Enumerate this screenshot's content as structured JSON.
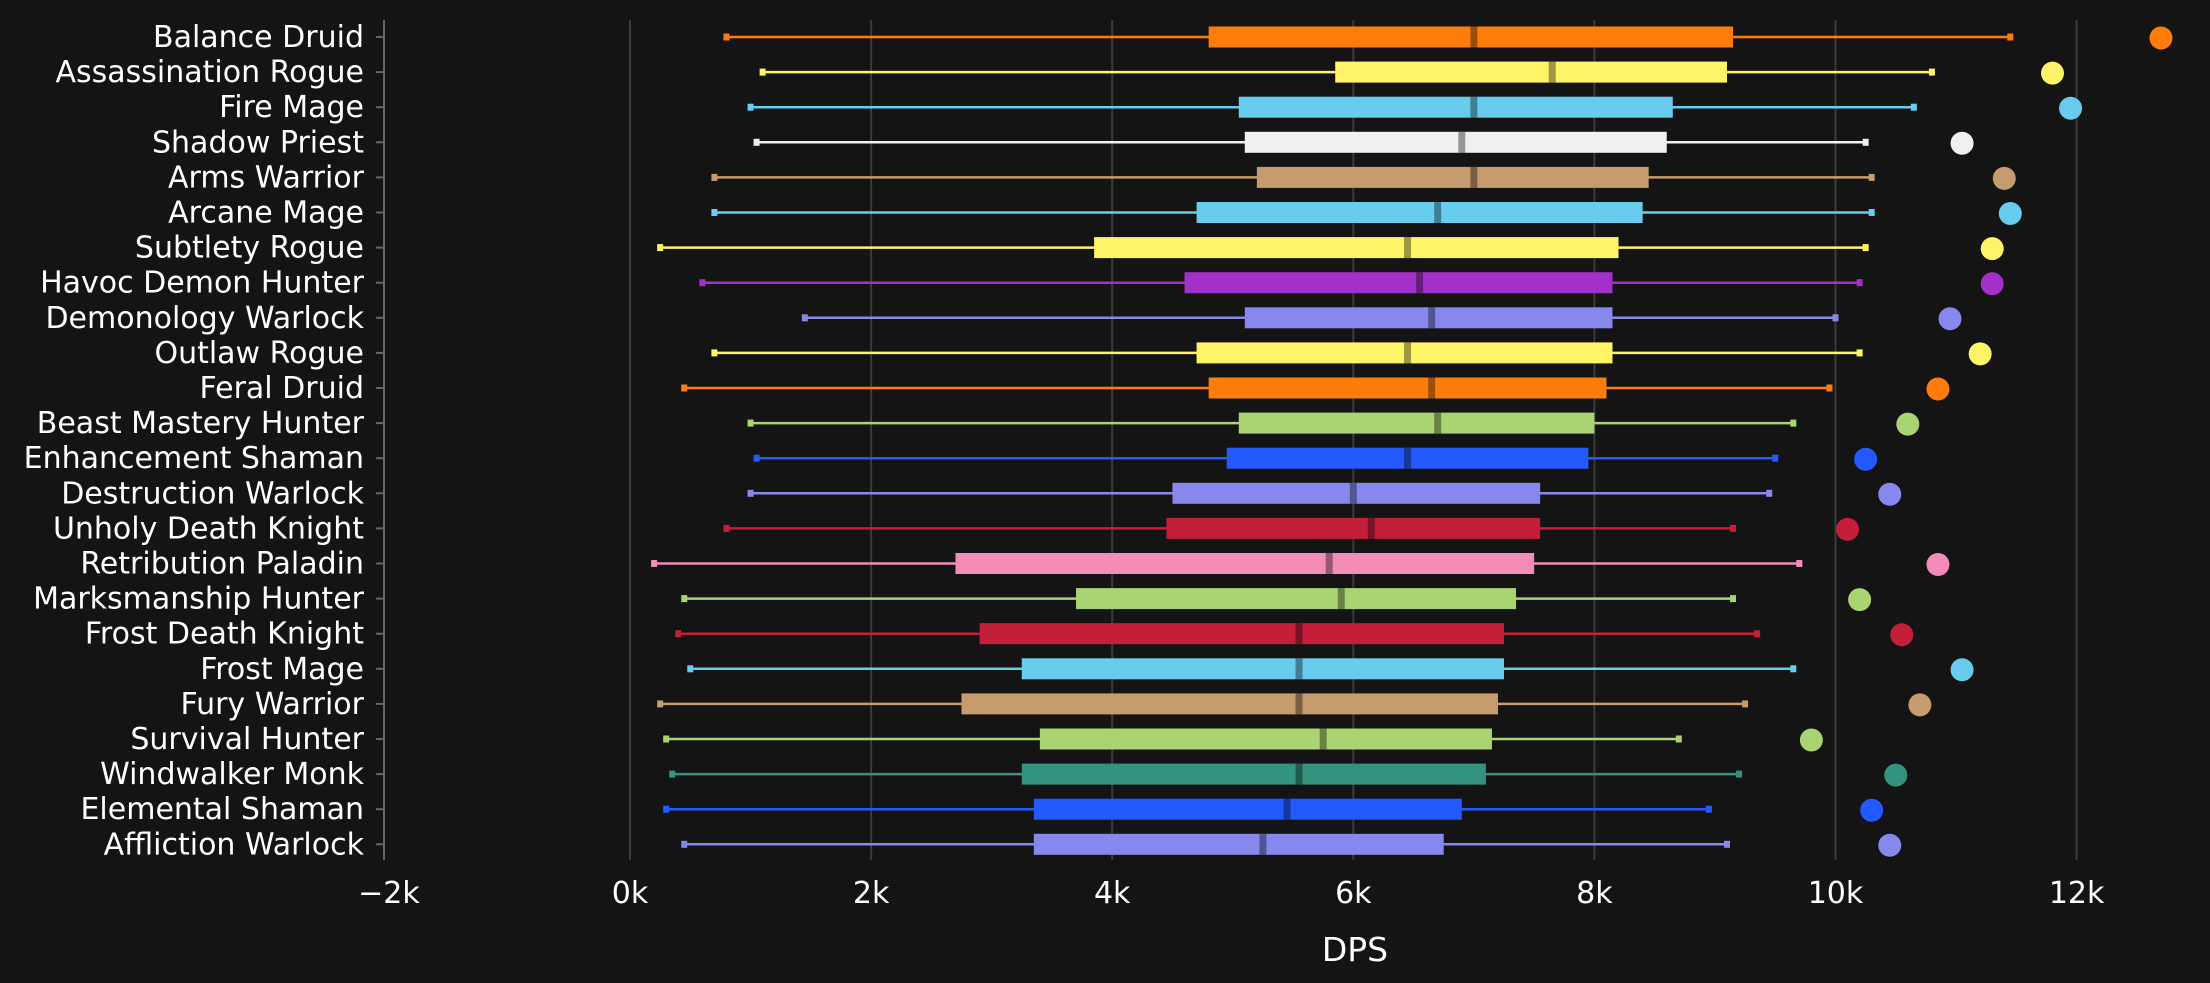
{
  "chart_data": {
    "type": "box",
    "orientation": "horizontal",
    "title": "",
    "xlabel": "DPS",
    "ylabel": "",
    "xlim": [
      -2000,
      12800
    ],
    "x_ticks": [
      -2000,
      0,
      2000,
      4000,
      6000,
      8000,
      10000,
      12000
    ],
    "x_tick_labels": [
      "−2k",
      "0k",
      "2k",
      "4k",
      "6k",
      "8k",
      "10k",
      "12k"
    ],
    "grid": true,
    "legend": "none",
    "fields": [
      "name",
      "color",
      "whisker_low",
      "q1",
      "median",
      "q3",
      "whisker_high",
      "max_point"
    ],
    "series": [
      {
        "name": "Balance Druid",
        "color": "#ff7c0a",
        "whisker_low": 800,
        "q1": 4800,
        "median": 7000,
        "q3": 9150,
        "whisker_high": 11450,
        "max_point": 12700
      },
      {
        "name": "Assassination Rogue",
        "color": "#fff468",
        "whisker_low": 1100,
        "q1": 5850,
        "median": 7650,
        "q3": 9100,
        "whisker_high": 10800,
        "max_point": 11800
      },
      {
        "name": "Fire Mage",
        "color": "#68ccef",
        "whisker_low": 1000,
        "q1": 5050,
        "median": 7000,
        "q3": 8650,
        "whisker_high": 10650,
        "max_point": 11950
      },
      {
        "name": "Shadow Priest",
        "color": "#f0f0f0",
        "whisker_low": 1050,
        "q1": 5100,
        "median": 6900,
        "q3": 8600,
        "whisker_high": 10250,
        "max_point": 11050
      },
      {
        "name": "Arms Warrior",
        "color": "#c69b6d",
        "whisker_low": 700,
        "q1": 5200,
        "median": 7000,
        "q3": 8450,
        "whisker_high": 10300,
        "max_point": 11400
      },
      {
        "name": "Arcane Mage",
        "color": "#68ccef",
        "whisker_low": 700,
        "q1": 4700,
        "median": 6700,
        "q3": 8400,
        "whisker_high": 10300,
        "max_point": 11450
      },
      {
        "name": "Subtlety Rogue",
        "color": "#fff468",
        "whisker_low": 250,
        "q1": 3850,
        "median": 6450,
        "q3": 8200,
        "whisker_high": 10250,
        "max_point": 11300
      },
      {
        "name": "Havoc Demon Hunter",
        "color": "#a330c9",
        "whisker_low": 600,
        "q1": 4600,
        "median": 6550,
        "q3": 8150,
        "whisker_high": 10200,
        "max_point": 11300
      },
      {
        "name": "Demonology Warlock",
        "color": "#8788ee",
        "whisker_low": 1450,
        "q1": 5100,
        "median": 6650,
        "q3": 8150,
        "whisker_high": 10000,
        "max_point": 10950
      },
      {
        "name": "Outlaw Rogue",
        "color": "#fff468",
        "whisker_low": 700,
        "q1": 4700,
        "median": 6450,
        "q3": 8150,
        "whisker_high": 10200,
        "max_point": 11200
      },
      {
        "name": "Feral Druid",
        "color": "#ff7c0a",
        "whisker_low": 450,
        "q1": 4800,
        "median": 6650,
        "q3": 8100,
        "whisker_high": 9950,
        "max_point": 10850
      },
      {
        "name": "Beast Mastery Hunter",
        "color": "#aad372",
        "whisker_low": 1000,
        "q1": 5050,
        "median": 6700,
        "q3": 8000,
        "whisker_high": 9650,
        "max_point": 10600
      },
      {
        "name": "Enhancement Shaman",
        "color": "#2359ff",
        "whisker_low": 1050,
        "q1": 4950,
        "median": 6450,
        "q3": 7950,
        "whisker_high": 9500,
        "max_point": 10250
      },
      {
        "name": "Destruction Warlock",
        "color": "#8788ee",
        "whisker_low": 1000,
        "q1": 4500,
        "median": 6000,
        "q3": 7550,
        "whisker_high": 9450,
        "max_point": 10450
      },
      {
        "name": "Unholy Death Knight",
        "color": "#c41e3a",
        "whisker_low": 800,
        "q1": 4450,
        "median": 6150,
        "q3": 7550,
        "whisker_high": 9150,
        "max_point": 10100
      },
      {
        "name": "Retribution Paladin",
        "color": "#f48cba",
        "whisker_low": 200,
        "q1": 2700,
        "median": 5800,
        "q3": 7500,
        "whisker_high": 9700,
        "max_point": 10850
      },
      {
        "name": "Marksmanship Hunter",
        "color": "#aad372",
        "whisker_low": 450,
        "q1": 3700,
        "median": 5900,
        "q3": 7350,
        "whisker_high": 9150,
        "max_point": 10200
      },
      {
        "name": "Frost Death Knight",
        "color": "#c41e3a",
        "whisker_low": 400,
        "q1": 2900,
        "median": 5550,
        "q3": 7250,
        "whisker_high": 9350,
        "max_point": 10550
      },
      {
        "name": "Frost Mage",
        "color": "#68ccef",
        "whisker_low": 500,
        "q1": 3250,
        "median": 5550,
        "q3": 7250,
        "whisker_high": 9650,
        "max_point": 11050
      },
      {
        "name": "Fury Warrior",
        "color": "#c69b6d",
        "whisker_low": 250,
        "q1": 2750,
        "median": 5550,
        "q3": 7200,
        "whisker_high": 9250,
        "max_point": 10700
      },
      {
        "name": "Survival Hunter",
        "color": "#aad372",
        "whisker_low": 300,
        "q1": 3400,
        "median": 5750,
        "q3": 7150,
        "whisker_high": 8700,
        "max_point": 9800
      },
      {
        "name": "Windwalker Monk",
        "color": "#33937f",
        "whisker_low": 350,
        "q1": 3250,
        "median": 5550,
        "q3": 7100,
        "whisker_high": 9200,
        "max_point": 10500
      },
      {
        "name": "Elemental Shaman",
        "color": "#2359ff",
        "whisker_low": 300,
        "q1": 3350,
        "median": 5450,
        "q3": 6900,
        "whisker_high": 8950,
        "max_point": 10300
      },
      {
        "name": "Affliction Warlock",
        "color": "#8788ee",
        "whisker_low": 450,
        "q1": 3350,
        "median": 5250,
        "q3": 6750,
        "whisker_high": 9100,
        "max_point": 10450
      }
    ]
  }
}
